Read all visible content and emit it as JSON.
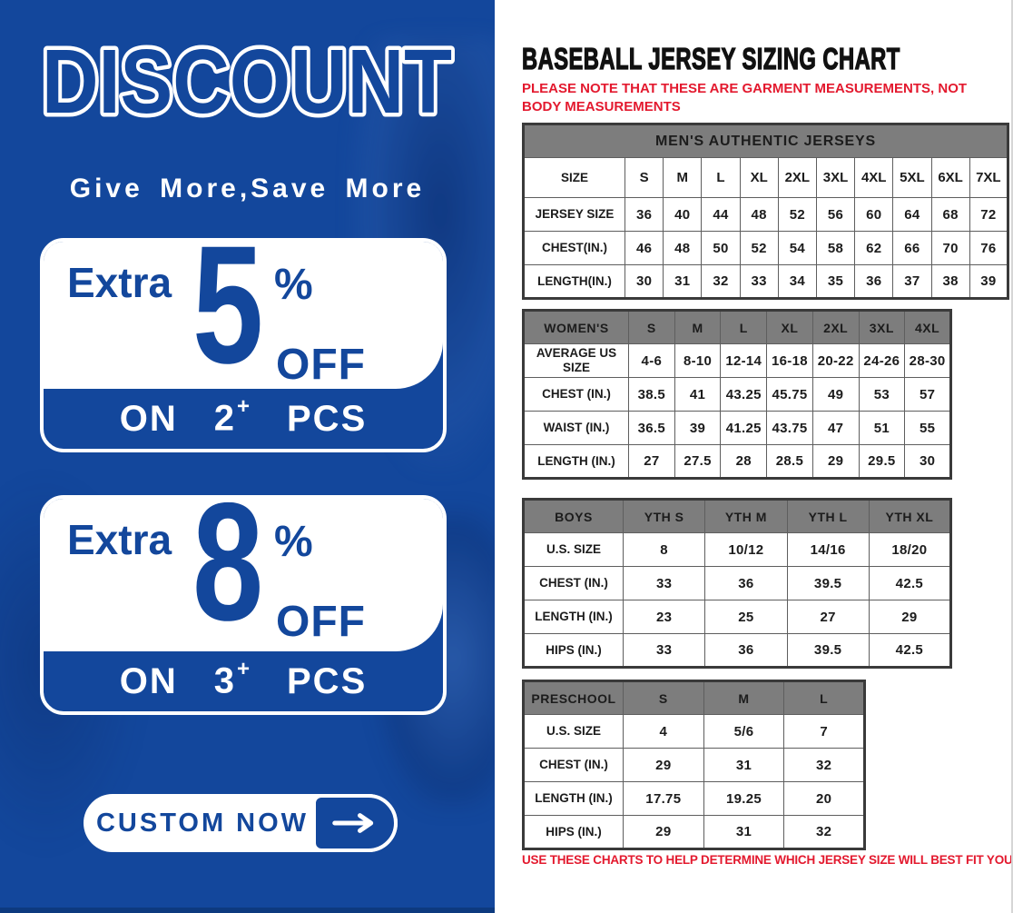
{
  "colors": {
    "blue": "#13479c",
    "dark_blue": "#0d3a7f",
    "white": "#ffffff",
    "red": "#e3192e",
    "gray_header": "#7d7d7d",
    "table_border": "#3a3a3a"
  },
  "left_panel": {
    "title": "DISCOUNT",
    "subtitle": "Give More,Save More",
    "offers": [
      {
        "prefix": "Extra",
        "percent": "5",
        "percent_sign": "%",
        "off_label": "OFF",
        "on_label": "ON",
        "qty": "2",
        "plus": "+",
        "pcs_label": "PCS"
      },
      {
        "prefix": "Extra",
        "percent": "8",
        "percent_sign": "%",
        "off_label": "OFF",
        "on_label": "ON",
        "qty": "3",
        "plus": "+",
        "pcs_label": "PCS"
      }
    ],
    "cta": {
      "label": "CUSTOM NOW",
      "arrow_icon": "arrow-right-icon"
    }
  },
  "right_panel": {
    "title": "BASEBALL JERSEY SIZING CHART",
    "note": "PLEASE NOTE THAT THESE ARE GARMENT MEASUREMENTS, NOT BODY MEASUREMENTS",
    "footer": "USE THESE CHARTS TO HELP DETERMINE WHICH JERSEY SIZE WILL BEST FIT YOU.",
    "tables": [
      {
        "key": "mens",
        "banner": "MEN'S AUTHENTIC JERSEYS",
        "columns": [
          "SIZE",
          "S",
          "M",
          "L",
          "XL",
          "2XL",
          "3XL",
          "4XL",
          "5XL",
          "6XL",
          "7XL"
        ],
        "rows": [
          [
            "JERSEY SIZE",
            "36",
            "40",
            "44",
            "48",
            "52",
            "56",
            "60",
            "64",
            "68",
            "72"
          ],
          [
            "CHEST(IN.)",
            "46",
            "48",
            "50",
            "52",
            "54",
            "58",
            "62",
            "66",
            "70",
            "76"
          ],
          [
            "LENGTH(IN.)",
            "30",
            "31",
            "32",
            "33",
            "34",
            "35",
            "36",
            "37",
            "38",
            "39"
          ]
        ]
      },
      {
        "key": "womens",
        "header": [
          "WOMEN'S",
          "S",
          "M",
          "L",
          "XL",
          "2XL",
          "3XL",
          "4XL"
        ],
        "rows": [
          [
            "AVERAGE US SIZE",
            "4-6",
            "8-10",
            "12-14",
            "16-18",
            "20-22",
            "24-26",
            "28-30"
          ],
          [
            "CHEST (IN.)",
            "38.5",
            "41",
            "43.25",
            "45.75",
            "49",
            "53",
            "57"
          ],
          [
            "WAIST (IN.)",
            "36.5",
            "39",
            "41.25",
            "43.75",
            "47",
            "51",
            "55"
          ],
          [
            "LENGTH (IN.)",
            "27",
            "27.5",
            "28",
            "28.5",
            "29",
            "29.5",
            "30"
          ]
        ]
      },
      {
        "key": "boys",
        "header": [
          "BOYS",
          "YTH S",
          "YTH M",
          "YTH L",
          "YTH XL"
        ],
        "rows": [
          [
            "U.S. SIZE",
            "8",
            "10/12",
            "14/16",
            "18/20"
          ],
          [
            "CHEST (IN.)",
            "33",
            "36",
            "39.5",
            "42.5"
          ],
          [
            "LENGTH (IN.)",
            "23",
            "25",
            "27",
            "29"
          ],
          [
            "HIPS (IN.)",
            "33",
            "36",
            "39.5",
            "42.5"
          ]
        ]
      },
      {
        "key": "preschool",
        "header": [
          "PRESCHOOL",
          "S",
          "M",
          "L"
        ],
        "rows": [
          [
            "U.S. SIZE",
            "4",
            "5/6",
            "7"
          ],
          [
            "CHEST (IN.)",
            "29",
            "31",
            "32"
          ],
          [
            "LENGTH (IN.)",
            "17.75",
            "19.25",
            "20"
          ],
          [
            "HIPS (IN.)",
            "29",
            "31",
            "32"
          ]
        ]
      }
    ]
  }
}
